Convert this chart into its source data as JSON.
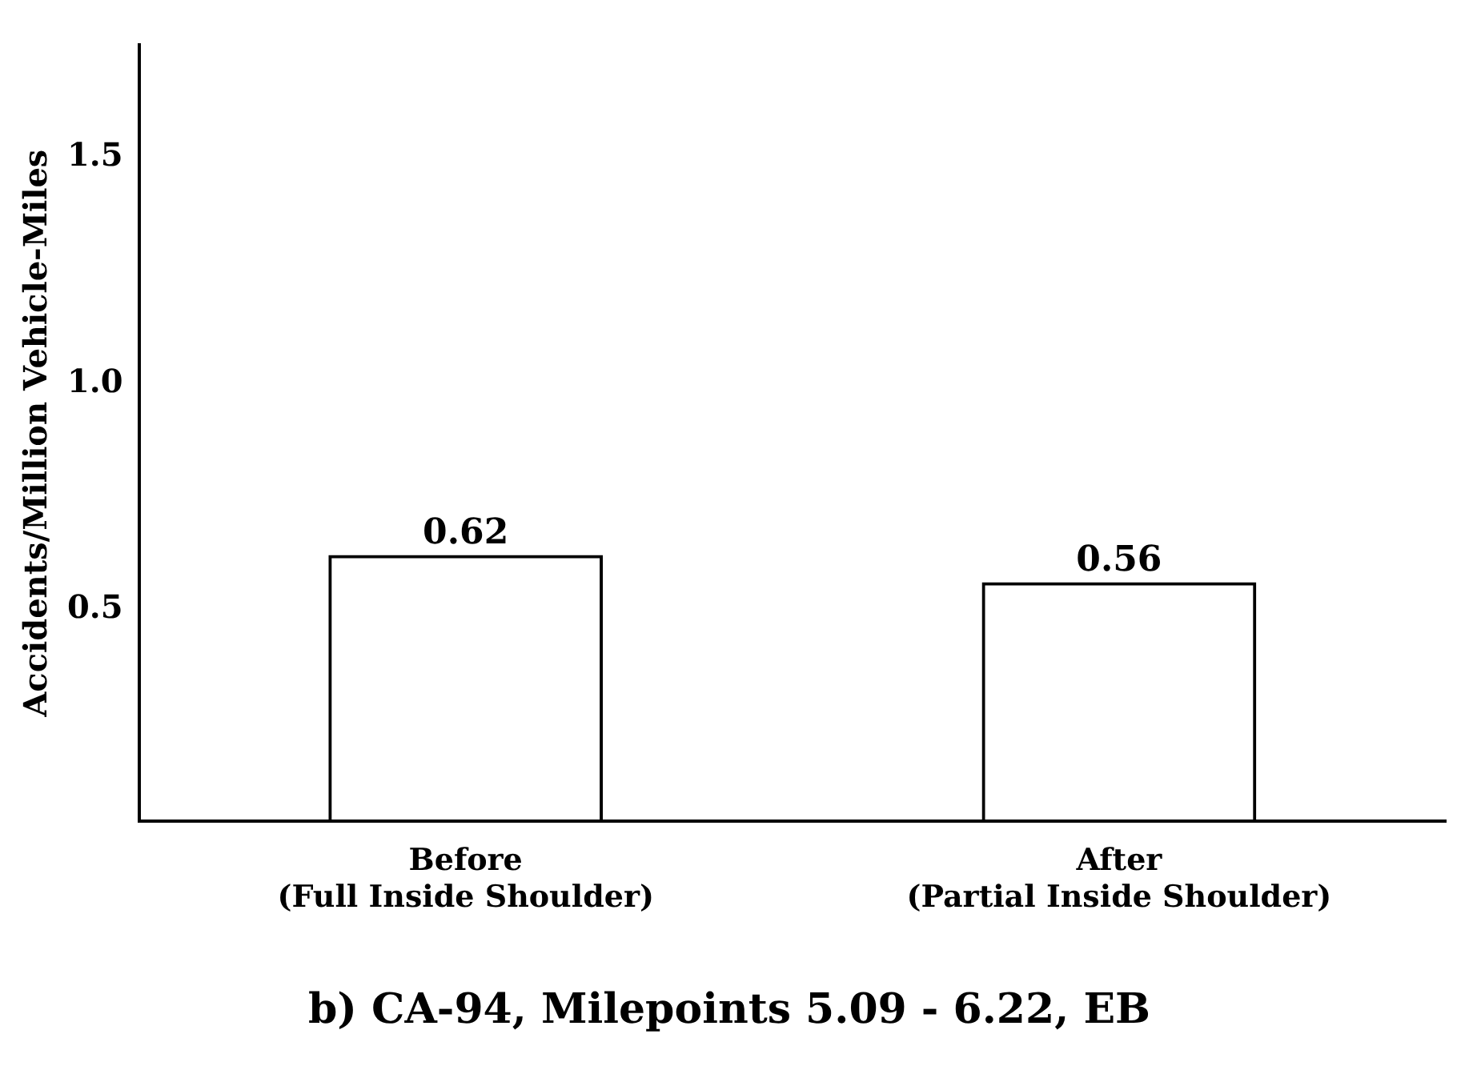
{
  "chart_data": {
    "type": "bar",
    "title": "b) CA-94, Milepoints 5.09 - 6.22, EB",
    "ylabel": "Accidents/Million Vehicle-Miles",
    "categories": [
      "Before\n(Full Inside Shoulder)",
      "After\n(Partial Inside Shoulder)"
    ],
    "values": [
      0.62,
      0.56
    ],
    "color": "#000000",
    "ylim": [
      0.03,
      1.75
    ],
    "yticks": [
      0.5,
      {
        "value": 1,
        "label": "1.0"
      },
      1.5
    ],
    "grid": false,
    "legend": false,
    "data_labels": true
  }
}
